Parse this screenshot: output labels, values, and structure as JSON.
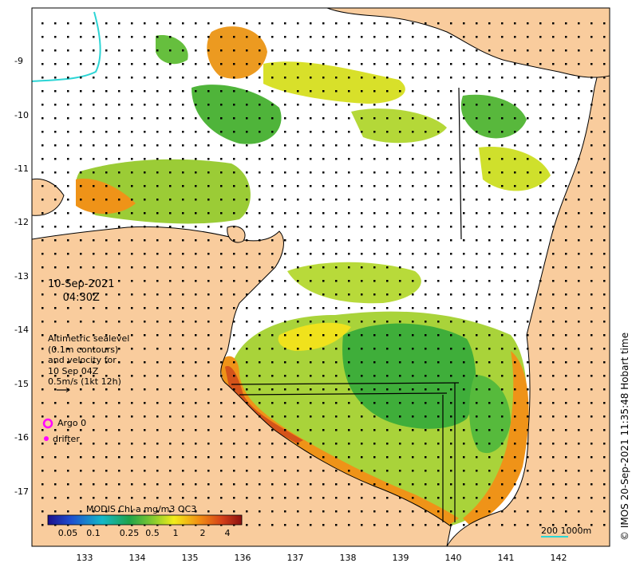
{
  "map": {
    "date_line1": "10-Sep-2021",
    "date_line2": "04:30Z",
    "legend_lines": [
      "Altimetric sealevel",
      "(0.1m contours)",
      "and velocity for",
      "10 Sep 04Z",
      "0.5m/s (1kt 12h)"
    ],
    "argo_label": "Argo 0",
    "drifter_label": "drifter",
    "colorbar_title": "MODIS Chl-a mg/m3 OC3",
    "colorbar_ticks": [
      "0.05",
      "0.1",
      "0.25",
      "0.5",
      "1",
      "2",
      "4"
    ],
    "scale_label": "200  1000m",
    "credit": "© IMOS 20-Sep-2021 11:35:48 Hobart time",
    "lat_ticks": [
      "-9",
      "-10",
      "-11",
      "-12",
      "-13",
      "-14",
      "-15",
      "-16",
      "-17"
    ],
    "lon_ticks": [
      "133",
      "134",
      "135",
      "136",
      "137",
      "138",
      "139",
      "140",
      "141",
      "142"
    ],
    "colors": {
      "land": "#f9cc9d",
      "ocean": "#ffffff",
      "argo": "#ff00ff",
      "drifter_track": "#2cd5d5",
      "scale_bar": "#2cd5d5"
    }
  }
}
